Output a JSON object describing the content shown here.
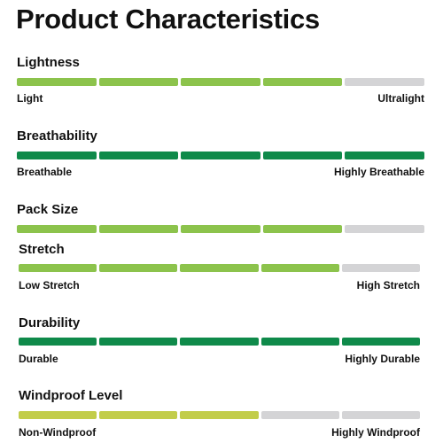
{
  "title": "Product Characteristics",
  "colors": {
    "light_green": "#8cc34c",
    "dark_green": "#0f8a4a",
    "olive": "#c2cd4a",
    "inactive": "#d4d4d6"
  },
  "characteristics": [
    {
      "label": "Lightness",
      "level": 4,
      "total": 5,
      "color": "#8cc34c",
      "low_label": "Light",
      "high_label": "Ultralight"
    },
    {
      "label": "Breathability",
      "level": 5,
      "total": 5,
      "color": "#0f8a4a",
      "low_label": "Breathable",
      "high_label": "Highly Breathable"
    },
    {
      "label": "Pack Size",
      "level": 4,
      "total": 5,
      "color": "#8cc34c",
      "low_label": "",
      "high_label": ""
    },
    {
      "label": "Stretch",
      "level": 4,
      "total": 5,
      "color": "#8cc34c",
      "low_label": "Low Stretch",
      "high_label": "High Stretch"
    },
    {
      "label": "Durability",
      "level": 5,
      "total": 5,
      "color": "#0f8a4a",
      "low_label": "Durable",
      "high_label": "Highly Durable"
    },
    {
      "label": "Windproof Level",
      "level": 3,
      "total": 5,
      "color": "#c2cd4a",
      "low_label": "Non-Windproof",
      "high_label": "Highly Windproof"
    }
  ]
}
